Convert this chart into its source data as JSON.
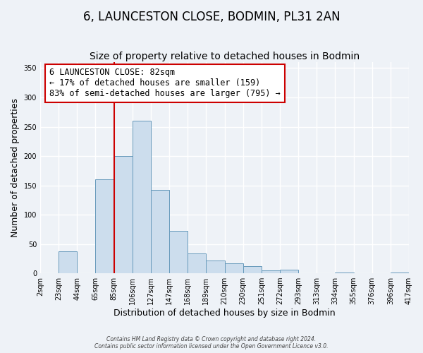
{
  "title": "6, LAUNCESTON CLOSE, BODMIN, PL31 2AN",
  "subtitle": "Size of property relative to detached houses in Bodmin",
  "xlabel": "Distribution of detached houses by size in Bodmin",
  "ylabel": "Number of detached properties",
  "footer_line1": "Contains HM Land Registry data © Crown copyright and database right 2024.",
  "footer_line2": "Contains public sector information licensed under the Open Government Licence v3.0.",
  "bin_labels": [
    "2sqm",
    "23sqm",
    "44sqm",
    "65sqm",
    "85sqm",
    "106sqm",
    "127sqm",
    "147sqm",
    "168sqm",
    "189sqm",
    "210sqm",
    "230sqm",
    "251sqm",
    "272sqm",
    "293sqm",
    "313sqm",
    "334sqm",
    "355sqm",
    "376sqm",
    "396sqm",
    "417sqm"
  ],
  "counts": [
    0,
    38,
    0,
    160,
    200,
    260,
    142,
    72,
    34,
    22,
    17,
    12,
    5,
    6,
    0,
    0,
    1,
    0,
    0,
    1
  ],
  "bar_color": "#ccdded",
  "bar_edge_color": "#6699bb",
  "vline_bin": 4,
  "vline_color": "#cc0000",
  "annotation_title": "6 LAUNCESTON CLOSE: 82sqm",
  "annotation_line1": "← 17% of detached houses are smaller (159)",
  "annotation_line2": "83% of semi-detached houses are larger (795) →",
  "annotation_box_color": "#ffffff",
  "annotation_box_edge_color": "#cc0000",
  "ylim": [
    0,
    360
  ],
  "background_color": "#eef2f7",
  "grid_color": "#ffffff",
  "title_fontsize": 12,
  "subtitle_fontsize": 10,
  "axis_label_fontsize": 9,
  "tick_fontsize": 7,
  "annotation_fontsize": 8.5
}
